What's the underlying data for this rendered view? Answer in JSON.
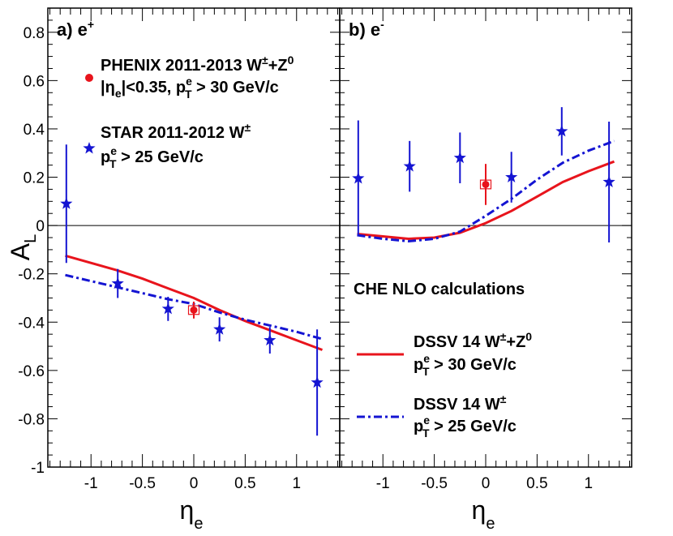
{
  "chart_data": [
    {
      "type": "scatter",
      "panel_label": "a) e",
      "panel_label_sup": "+",
      "xlabel": "η",
      "xlabel_sub": "e",
      "ylabel": "A",
      "ylabel_sub": "L",
      "xlim": [
        -1.42,
        1.42
      ],
      "ylim": [
        -1.0,
        0.9
      ],
      "xticks": [
        -1,
        -0.5,
        0,
        0.5,
        1
      ],
      "yticks": [
        -1,
        -0.8,
        -0.6,
        -0.4,
        -0.2,
        0,
        0.2,
        0.4,
        0.6,
        0.8
      ],
      "series": [
        {
          "name": "PHENIX 2011-2013 W±+Z0",
          "marker": "circle",
          "color": "#e8141c",
          "points": [
            {
              "x": 0.0,
              "y": -0.35,
              "err": 0.035,
              "syst": 0.018
            }
          ]
        },
        {
          "name": "STAR 2011-2012 W±",
          "marker": "star",
          "color": "#1414d2",
          "points": [
            {
              "x": -1.24,
              "y": 0.09,
              "err": 0.245
            },
            {
              "x": -0.74,
              "y": -0.24,
              "err": 0.06
            },
            {
              "x": -0.25,
              "y": -0.345,
              "err": 0.05
            },
            {
              "x": 0.25,
              "y": -0.43,
              "err": 0.05
            },
            {
              "x": 0.74,
              "y": -0.475,
              "err": 0.055
            },
            {
              "x": 1.2,
              "y": -0.65,
              "err": 0.22
            }
          ]
        }
      ],
      "curves": [
        {
          "name": "DSSV 14 W±+Z0",
          "style": "solid",
          "color": "#e8141c",
          "x": [
            -1.25,
            -0.75,
            -0.5,
            -0.25,
            0,
            0.25,
            0.5,
            0.75,
            1.0,
            1.25
          ],
          "y": [
            -0.125,
            -0.185,
            -0.22,
            -0.26,
            -0.3,
            -0.35,
            -0.395,
            -0.435,
            -0.475,
            -0.515
          ]
        },
        {
          "name": "DSSV 14 W±",
          "style": "dashdot",
          "color": "#1414d2",
          "x": [
            -1.25,
            -0.75,
            -0.5,
            -0.25,
            0,
            0.25,
            0.5,
            0.75,
            1.0,
            1.25
          ],
          "y": [
            -0.205,
            -0.255,
            -0.28,
            -0.305,
            -0.325,
            -0.36,
            -0.39,
            -0.415,
            -0.44,
            -0.47
          ]
        }
      ]
    },
    {
      "type": "scatter",
      "panel_label": "b) e",
      "panel_label_sup": "-",
      "xlabel": "η",
      "xlabel_sub": "e",
      "xlim": [
        -1.42,
        1.42
      ],
      "ylim": [
        -1.0,
        0.9
      ],
      "xticks": [
        -1,
        -0.5,
        0,
        0.5,
        1
      ],
      "series": [
        {
          "name": "PHENIX 2011-2013 W±+Z0",
          "marker": "circle",
          "color": "#e8141c",
          "points": [
            {
              "x": 0.0,
              "y": 0.17,
              "err": 0.085,
              "syst": 0.018
            }
          ]
        },
        {
          "name": "STAR 2011-2012 W±",
          "marker": "star",
          "color": "#1414d2",
          "points": [
            {
              "x": -1.24,
              "y": 0.195,
              "err": 0.24
            },
            {
              "x": -0.74,
              "y": 0.245,
              "err": 0.105
            },
            {
              "x": -0.25,
              "y": 0.28,
              "err": 0.105
            },
            {
              "x": 0.25,
              "y": 0.2,
              "err": 0.105
            },
            {
              "x": 0.74,
              "y": 0.39,
              "err": 0.1
            },
            {
              "x": 1.2,
              "y": 0.18,
              "err": 0.25
            }
          ]
        }
      ],
      "curves": [
        {
          "name": "DSSV 14 W±+Z0",
          "style": "solid",
          "color": "#e8141c",
          "x": [
            -1.25,
            -1.0,
            -0.75,
            -0.5,
            -0.25,
            0,
            0.25,
            0.5,
            0.75,
            1.0,
            1.25
          ],
          "y": [
            -0.035,
            -0.045,
            -0.055,
            -0.05,
            -0.03,
            0.01,
            0.06,
            0.12,
            0.18,
            0.225,
            0.265
          ]
        },
        {
          "name": "DSSV 14 W±",
          "style": "dashdot",
          "color": "#1414d2",
          "x": [
            -1.25,
            -1.0,
            -0.75,
            -0.5,
            -0.25,
            0,
            0.25,
            0.5,
            0.75,
            1.0,
            1.25
          ],
          "y": [
            -0.04,
            -0.055,
            -0.065,
            -0.055,
            -0.025,
            0.04,
            0.11,
            0.19,
            0.26,
            0.31,
            0.35
          ]
        }
      ]
    }
  ],
  "legend_left": {
    "phenix_line1": "PHENIX 2011-2013 W",
    "phenix_sup1": "±",
    "phenix_plus": "+Z",
    "phenix_sup2": "0",
    "phenix_line2_a": "|η",
    "phenix_line2_sub": "e",
    "phenix_line2_b": "|<0.35, p",
    "phenix_line2_sup": "e",
    "phenix_line2_sub2": "T",
    "phenix_line2_c": " > 30 GeV/c",
    "star_line1": "STAR 2011-2012 W",
    "star_sup1": "±",
    "star_line2_a": "p",
    "star_line2_sup": "e",
    "star_line2_sub": "T",
    "star_line2_b": " > 25 GeV/c"
  },
  "legend_right": {
    "title": "CHE NLO calculations",
    "dssv_full_a": "DSSV 14 W",
    "dssv_full_sup": "±",
    "dssv_full_b": "+Z",
    "dssv_full_sup2": "0",
    "dssv_full_line2_a": "p",
    "dssv_full_line2_sup": "e",
    "dssv_full_line2_sub": "T",
    "dssv_full_line2_b": " > 30 GeV/c",
    "dssv_w_a": "DSSV 14 W",
    "dssv_w_sup": "±",
    "dssv_w_line2_a": "p",
    "dssv_w_line2_sup": "e",
    "dssv_w_line2_sub": "T",
    "dssv_w_line2_b": " > 25 GeV/c"
  },
  "colors": {
    "phenix": "#e8141c",
    "star": "#1414d2",
    "axis": "#000000"
  }
}
